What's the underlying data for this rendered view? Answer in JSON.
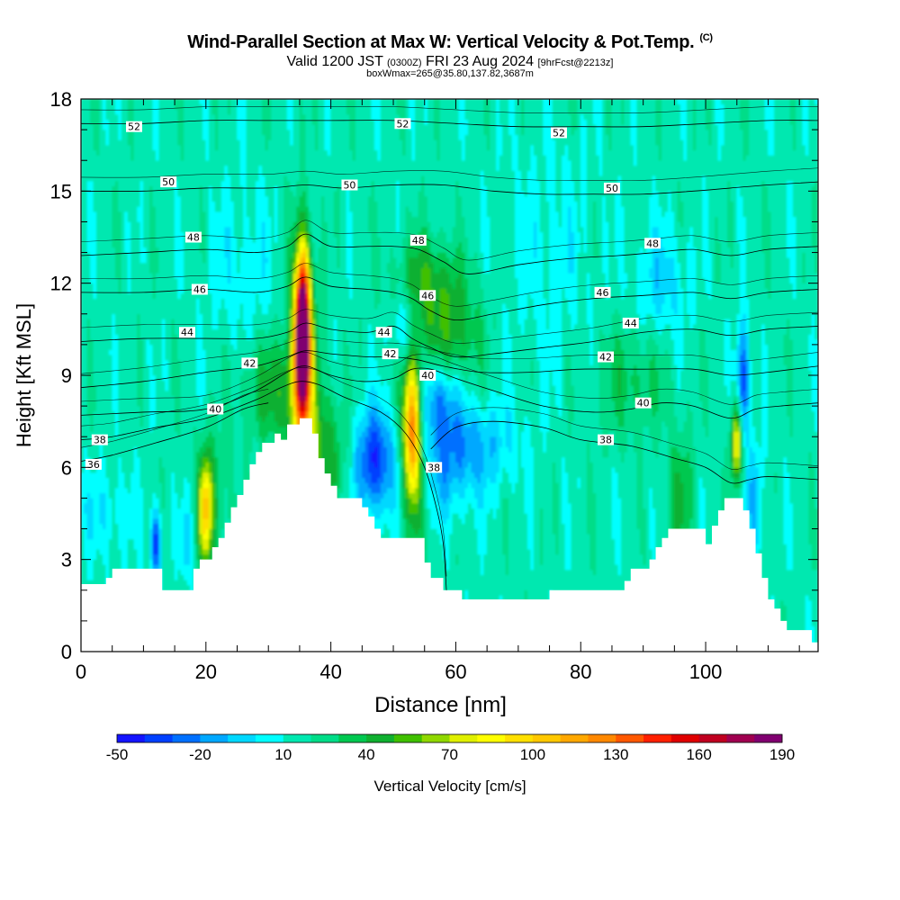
{
  "title": {
    "main": "Wind-Parallel Section at Max W: Vertical Velocity & Pot.Temp.",
    "main_mark": "(C)",
    "sub_a": "Valid 1200 JST",
    "sub_b": "(0300Z)",
    "sub_c": "FRI 23 Aug 2024",
    "sub_d": "[9hrFcst@2213z]",
    "box": "boxWmax=265@35.80,137.82,3687m"
  },
  "chart_data": {
    "type": "heatmap",
    "xlabel": "Distance [nm]",
    "ylabel": "Height [Kft MSL]",
    "xlim": [
      0,
      118
    ],
    "ylim": [
      0,
      18
    ],
    "xticks": [
      0,
      20,
      40,
      60,
      80,
      100
    ],
    "yticks": [
      0,
      3,
      6,
      9,
      12,
      15,
      18
    ],
    "grid": false,
    "background_w": 15,
    "terrain": [
      {
        "x": 0,
        "y": 2.2
      },
      {
        "x": 4,
        "y": 2.4
      },
      {
        "x": 5,
        "y": 2.7
      },
      {
        "x": 12,
        "y": 2.7
      },
      {
        "x": 13,
        "y": 2.0
      },
      {
        "x": 17,
        "y": 2.0
      },
      {
        "x": 18,
        "y": 2.7
      },
      {
        "x": 19,
        "y": 3.0
      },
      {
        "x": 21,
        "y": 3.4
      },
      {
        "x": 22,
        "y": 3.7
      },
      {
        "x": 23,
        "y": 4.2
      },
      {
        "x": 24,
        "y": 4.7
      },
      {
        "x": 25,
        "y": 5.1
      },
      {
        "x": 26,
        "y": 5.6
      },
      {
        "x": 27,
        "y": 6.1
      },
      {
        "x": 28,
        "y": 6.5
      },
      {
        "x": 29,
        "y": 6.8
      },
      {
        "x": 31,
        "y": 7.1
      },
      {
        "x": 32,
        "y": 6.9
      },
      {
        "x": 33,
        "y": 7.4
      },
      {
        "x": 35,
        "y": 7.6
      },
      {
        "x": 37,
        "y": 7.1
      },
      {
        "x": 38,
        "y": 6.3
      },
      {
        "x": 39,
        "y": 5.8
      },
      {
        "x": 40,
        "y": 5.4
      },
      {
        "x": 41,
        "y": 5.0
      },
      {
        "x": 44,
        "y": 5.0
      },
      {
        "x": 45,
        "y": 4.7
      },
      {
        "x": 46,
        "y": 4.4
      },
      {
        "x": 47,
        "y": 4.0
      },
      {
        "x": 48,
        "y": 3.7
      },
      {
        "x": 54,
        "y": 3.7
      },
      {
        "x": 55,
        "y": 2.9
      },
      {
        "x": 56,
        "y": 2.4
      },
      {
        "x": 58,
        "y": 2.0
      },
      {
        "x": 61,
        "y": 1.7
      },
      {
        "x": 74,
        "y": 1.7
      },
      {
        "x": 75,
        "y": 2.0
      },
      {
        "x": 86,
        "y": 2.0
      },
      {
        "x": 87,
        "y": 2.3
      },
      {
        "x": 88,
        "y": 2.7
      },
      {
        "x": 91,
        "y": 3.0
      },
      {
        "x": 92,
        "y": 3.4
      },
      {
        "x": 93,
        "y": 3.7
      },
      {
        "x": 94,
        "y": 4.0
      },
      {
        "x": 99,
        "y": 4.0
      },
      {
        "x": 100,
        "y": 3.5
      },
      {
        "x": 101,
        "y": 4.1
      },
      {
        "x": 102,
        "y": 4.6
      },
      {
        "x": 103,
        "y": 5.0
      },
      {
        "x": 105,
        "y": 5.0
      },
      {
        "x": 106,
        "y": 4.6
      },
      {
        "x": 107,
        "y": 4.0
      },
      {
        "x": 108,
        "y": 3.2
      },
      {
        "x": 109,
        "y": 2.4
      },
      {
        "x": 110,
        "y": 1.7
      },
      {
        "x": 111,
        "y": 1.4
      },
      {
        "x": 112,
        "y": 1.0
      },
      {
        "x": 113,
        "y": 0.7
      },
      {
        "x": 116,
        "y": 0.7
      },
      {
        "x": 117,
        "y": 0.3
      },
      {
        "x": 118,
        "y": 0.3
      }
    ],
    "features": [
      {
        "x": 35.5,
        "y": 10.4,
        "sx": 0.8,
        "sy": 1.8,
        "w": 185
      },
      {
        "x": 35.5,
        "y": 9.0,
        "sx": 1.6,
        "sy": 2.8,
        "w": 60
      },
      {
        "x": 53.0,
        "y": 7.2,
        "sx": 0.9,
        "sy": 1.6,
        "w": 95
      },
      {
        "x": 53.5,
        "y": 7.0,
        "sx": 1.8,
        "sy": 2.4,
        "w": 35
      },
      {
        "x": 20.0,
        "y": 4.6,
        "sx": 0.7,
        "sy": 1.2,
        "w": 70
      },
      {
        "x": 21.0,
        "y": 4.8,
        "sx": 1.8,
        "sy": 1.6,
        "w": 25
      },
      {
        "x": 105.0,
        "y": 6.8,
        "sx": 0.6,
        "sy": 0.9,
        "w": 75
      },
      {
        "x": 31.0,
        "y": 8.5,
        "sx": 3.5,
        "sy": 1.2,
        "w": 30
      },
      {
        "x": 39.0,
        "y": 6.5,
        "sx": 2.5,
        "sy": 1.4,
        "w": 30
      },
      {
        "x": 59.0,
        "y": 10.3,
        "sx": 3.5,
        "sy": 1.4,
        "w": 35
      },
      {
        "x": 55.0,
        "y": 12.2,
        "sx": 3.5,
        "sy": 1.0,
        "w": 25
      },
      {
        "x": 96.0,
        "y": 5.0,
        "sx": 1.6,
        "sy": 1.5,
        "w": 25
      },
      {
        "x": 88.0,
        "y": 8.8,
        "sx": 4.0,
        "sy": 1.3,
        "w": 20
      },
      {
        "x": 47.0,
        "y": 6.2,
        "sx": 2.2,
        "sy": 1.2,
        "w": -55
      },
      {
        "x": 57.0,
        "y": 8.3,
        "sx": 2.5,
        "sy": 1.0,
        "w": -45
      },
      {
        "x": 58.0,
        "y": 6.0,
        "sx": 4.0,
        "sy": 1.2,
        "w": -25
      },
      {
        "x": 64.0,
        "y": 6.8,
        "sx": 4.5,
        "sy": 1.0,
        "w": -22
      },
      {
        "x": 52.0,
        "y": 10.5,
        "sx": 1.5,
        "sy": 0.9,
        "w": -30
      },
      {
        "x": 12.0,
        "y": 3.5,
        "sx": 0.6,
        "sy": 0.8,
        "w": -55
      },
      {
        "x": 17.0,
        "y": 3.6,
        "sx": 0.7,
        "sy": 0.9,
        "w": -25
      },
      {
        "x": 106.0,
        "y": 8.8,
        "sx": 0.7,
        "sy": 1.3,
        "w": -55
      },
      {
        "x": 108.0,
        "y": 5.0,
        "sx": 1.0,
        "sy": 1.3,
        "w": -25
      },
      {
        "x": 93.0,
        "y": 12.0,
        "sx": 3.0,
        "sy": 1.3,
        "w": -20
      },
      {
        "x": 4.0,
        "y": 4.5,
        "sx": 3.0,
        "sy": 1.0,
        "w": -15
      },
      {
        "x": 26.0,
        "y": 12.5,
        "sx": 4.0,
        "sy": 1.8,
        "w": -12
      },
      {
        "x": 75.0,
        "y": 13.0,
        "sx": 5.0,
        "sy": 2.5,
        "w": -10
      }
    ],
    "isentropes": [
      {
        "theta": 36,
        "pts": [
          [
            0,
            6.2
          ],
          [
            5,
            6.4
          ],
          [
            12,
            6.8
          ],
          [
            20,
            7.3
          ],
          [
            26,
            7.9
          ],
          [
            30,
            8.1
          ]
        ]
      },
      {
        "theta": 38,
        "pts": [
          [
            0,
            6.9
          ],
          [
            5,
            7.0
          ],
          [
            12,
            7.3
          ],
          [
            20,
            7.6
          ],
          [
            28,
            8.2
          ],
          [
            32,
            8.6
          ],
          [
            35,
            8.8
          ],
          [
            38,
            8.7
          ],
          [
            42,
            8.3
          ],
          [
            48,
            7.8
          ],
          [
            52,
            7.1
          ],
          [
            55,
            6.0
          ],
          [
            57,
            4.6
          ],
          [
            58,
            3.5
          ],
          [
            58.5,
            2.0
          ]
        ]
      },
      {
        "theta": 38,
        "pts": [
          [
            56,
            6.6
          ],
          [
            60,
            7.3
          ],
          [
            66,
            7.5
          ],
          [
            74,
            7.3
          ],
          [
            80,
            6.9
          ],
          [
            88,
            6.7
          ],
          [
            95,
            6.3
          ],
          [
            100,
            6.0
          ],
          [
            104,
            5.5
          ],
          [
            107,
            5.6
          ],
          [
            110,
            5.7
          ],
          [
            118,
            5.6
          ]
        ]
      },
      {
        "theta": 40,
        "pts": [
          [
            0,
            7.7
          ],
          [
            10,
            7.8
          ],
          [
            20,
            7.9
          ],
          [
            28,
            8.5
          ],
          [
            33,
            9.1
          ],
          [
            36,
            9.3
          ],
          [
            40,
            9.0
          ],
          [
            45,
            8.8
          ],
          [
            50,
            8.9
          ],
          [
            53,
            9.2
          ],
          [
            56,
            9.2
          ],
          [
            60,
            8.9
          ],
          [
            66,
            8.5
          ],
          [
            74,
            8.0
          ],
          [
            82,
            7.8
          ],
          [
            88,
            7.9
          ],
          [
            93,
            8.1
          ],
          [
            98,
            8.0
          ],
          [
            104,
            7.6
          ],
          [
            108,
            7.9
          ],
          [
            112,
            8.0
          ],
          [
            118,
            8.1
          ]
        ]
      },
      {
        "theta": 42,
        "pts": [
          [
            0,
            8.6
          ],
          [
            10,
            8.8
          ],
          [
            20,
            9.1
          ],
          [
            28,
            9.3
          ],
          [
            33,
            9.6
          ],
          [
            36,
            9.8
          ],
          [
            40,
            9.7
          ],
          [
            46,
            9.6
          ],
          [
            50,
            9.6
          ],
          [
            54,
            9.5
          ],
          [
            58,
            9.3
          ],
          [
            64,
            9.1
          ],
          [
            72,
            9.1
          ],
          [
            80,
            9.2
          ],
          [
            90,
            9.2
          ],
          [
            98,
            9.2
          ],
          [
            104,
            9.0
          ],
          [
            110,
            9.1
          ],
          [
            118,
            9.3
          ]
        ]
      },
      {
        "theta": 44,
        "pts": [
          [
            0,
            10.1
          ],
          [
            10,
            10.2
          ],
          [
            20,
            10.2
          ],
          [
            28,
            10.2
          ],
          [
            33,
            10.4
          ],
          [
            36,
            10.7
          ],
          [
            40,
            10.5
          ],
          [
            46,
            10.4
          ],
          [
            50,
            10.6
          ],
          [
            53,
            10.2
          ],
          [
            56,
            9.9
          ],
          [
            60,
            9.6
          ],
          [
            66,
            9.7
          ],
          [
            74,
            9.9
          ],
          [
            82,
            10.1
          ],
          [
            90,
            10.4
          ],
          [
            98,
            10.5
          ],
          [
            104,
            10.3
          ],
          [
            110,
            10.5
          ],
          [
            118,
            10.6
          ]
        ]
      },
      {
        "theta": 46,
        "pts": [
          [
            0,
            11.7
          ],
          [
            10,
            11.7
          ],
          [
            20,
            11.8
          ],
          [
            28,
            11.7
          ],
          [
            33,
            11.9
          ],
          [
            36,
            12.2
          ],
          [
            40,
            11.9
          ],
          [
            46,
            11.8
          ],
          [
            50,
            11.7
          ],
          [
            53,
            11.5
          ],
          [
            56,
            11.1
          ],
          [
            60,
            10.8
          ],
          [
            66,
            11.0
          ],
          [
            74,
            11.3
          ],
          [
            82,
            11.5
          ],
          [
            90,
            11.6
          ],
          [
            98,
            11.7
          ],
          [
            104,
            11.5
          ],
          [
            110,
            11.7
          ],
          [
            118,
            11.8
          ]
        ]
      },
      {
        "theta": 48,
        "pts": [
          [
            0,
            12.9
          ],
          [
            10,
            13.0
          ],
          [
            20,
            13.1
          ],
          [
            28,
            13.0
          ],
          [
            33,
            13.2
          ],
          [
            36,
            13.6
          ],
          [
            40,
            13.2
          ],
          [
            46,
            13.2
          ],
          [
            50,
            13.2
          ],
          [
            54,
            13.1
          ],
          [
            58,
            12.7
          ],
          [
            62,
            12.3
          ],
          [
            70,
            12.6
          ],
          [
            78,
            12.8
          ],
          [
            86,
            12.9
          ],
          [
            92,
            13.0
          ],
          [
            98,
            13.1
          ],
          [
            104,
            12.9
          ],
          [
            110,
            13.1
          ],
          [
            118,
            13.2
          ]
        ]
      },
      {
        "theta": 50,
        "pts": [
          [
            0,
            15.0
          ],
          [
            10,
            15.0
          ],
          [
            20,
            15.1
          ],
          [
            30,
            15.1
          ],
          [
            36,
            15.2
          ],
          [
            42,
            15.1
          ],
          [
            50,
            15.2
          ],
          [
            58,
            15.2
          ],
          [
            66,
            15.0
          ],
          [
            74,
            14.9
          ],
          [
            82,
            14.9
          ],
          [
            90,
            14.9
          ],
          [
            98,
            15.0
          ],
          [
            104,
            15.1
          ],
          [
            110,
            15.2
          ],
          [
            118,
            15.3
          ]
        ]
      },
      {
        "theta": 52,
        "pts": [
          [
            0,
            17.2
          ],
          [
            10,
            17.2
          ],
          [
            20,
            17.3
          ],
          [
            30,
            17.3
          ],
          [
            40,
            17.3
          ],
          [
            50,
            17.3
          ],
          [
            60,
            17.2
          ],
          [
            70,
            17.1
          ],
          [
            80,
            17.1
          ],
          [
            90,
            17.1
          ],
          [
            100,
            17.2
          ],
          [
            110,
            17.3
          ],
          [
            118,
            17.3
          ]
        ]
      }
    ],
    "contour_labels": [
      {
        "text": "52",
        "x": 8.5,
        "y": 17.1
      },
      {
        "text": "52",
        "x": 51.5,
        "y": 17.2
      },
      {
        "text": "52",
        "x": 76.5,
        "y": 16.9
      },
      {
        "text": "50",
        "x": 14,
        "y": 15.3
      },
      {
        "text": "50",
        "x": 43,
        "y": 15.2
      },
      {
        "text": "50",
        "x": 85,
        "y": 15.1
      },
      {
        "text": "48",
        "x": 18,
        "y": 13.5
      },
      {
        "text": "48",
        "x": 54,
        "y": 13.4
      },
      {
        "text": "48",
        "x": 91.5,
        "y": 13.3
      },
      {
        "text": "46",
        "x": 19,
        "y": 11.8
      },
      {
        "text": "46",
        "x": 55.5,
        "y": 11.6
      },
      {
        "text": "46",
        "x": 83.5,
        "y": 11.7
      },
      {
        "text": "44",
        "x": 17,
        "y": 10.4
      },
      {
        "text": "44",
        "x": 48.5,
        "y": 10.4
      },
      {
        "text": "44",
        "x": 88,
        "y": 10.7
      },
      {
        "text": "42",
        "x": 27,
        "y": 9.4
      },
      {
        "text": "42",
        "x": 49.5,
        "y": 9.7
      },
      {
        "text": "42",
        "x": 84,
        "y": 9.6
      },
      {
        "text": "40",
        "x": 21.5,
        "y": 7.9
      },
      {
        "text": "40",
        "x": 55.5,
        "y": 9.0
      },
      {
        "text": "40",
        "x": 90,
        "y": 8.1
      },
      {
        "text": "38",
        "x": 3,
        "y": 6.9
      },
      {
        "text": "38",
        "x": 56.5,
        "y": 6.0
      },
      {
        "text": "38",
        "x": 84,
        "y": 6.9
      },
      {
        "text": "36",
        "x": 2,
        "y": 6.1
      }
    ],
    "colorbar": {
      "title": "Vertical Velocity [cm/s]",
      "levels": [
        -50,
        -40,
        -30,
        -20,
        -10,
        0,
        10,
        20,
        30,
        40,
        50,
        60,
        70,
        80,
        90,
        100,
        110,
        120,
        130,
        140,
        150,
        160,
        170,
        180,
        190
      ],
      "colors": [
        "#1414ff",
        "#0040ff",
        "#0070ff",
        "#00a8ff",
        "#00d8ff",
        "#00ffff",
        "#00e8b0",
        "#00dd88",
        "#00c850",
        "#10b030",
        "#40c000",
        "#90d800",
        "#e0f000",
        "#ffff00",
        "#ffe000",
        "#ffc800",
        "#ffa800",
        "#ff8800",
        "#ff5800",
        "#ff2000",
        "#e00000",
        "#c00020",
        "#a00050",
        "#800070"
      ],
      "tick_labels": [
        "-50",
        "-20",
        "10",
        "40",
        "70",
        "100",
        "130",
        "160",
        "190"
      ]
    }
  }
}
